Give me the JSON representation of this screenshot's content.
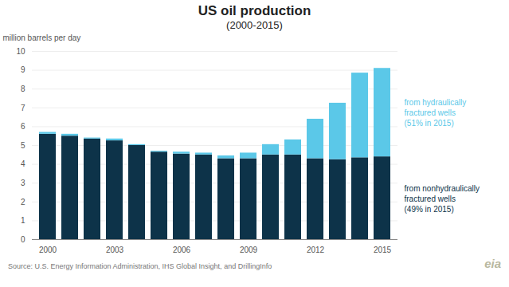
{
  "chart_data": {
    "type": "bar",
    "stacked": true,
    "title": "US oil production",
    "subtitle": "(2000-2015)",
    "ylabel": "million barrels per day",
    "annotations": [
      "Source: U.S. Energy Information Administration, IHS Global Insight, and DrillingInfo",
      "eia"
    ],
    "categories": [
      "2000",
      null,
      null,
      "2003",
      null,
      null,
      "2006",
      null,
      null,
      "2009",
      null,
      null,
      "2012",
      null,
      null,
      "2015"
    ],
    "series": [
      {
        "name": "from nonhydraulically\nfractured wells\n(49% in 2015)",
        "color": "#0d3349",
        "values": [
          5.6,
          5.5,
          5.35,
          5.25,
          5.0,
          4.65,
          4.55,
          4.5,
          4.3,
          4.3,
          4.5,
          4.5,
          4.3,
          4.25,
          4.35,
          4.4
        ]
      },
      {
        "name": "from hydraulically\nfractured wells\n(51% in 2015)",
        "color": "#5bc8e8",
        "values": [
          0.1,
          0.1,
          0.05,
          0.1,
          0.05,
          0.05,
          0.1,
          0.1,
          0.15,
          0.3,
          0.55,
          0.8,
          2.1,
          3.0,
          4.5,
          4.7
        ]
      }
    ],
    "ylim": [
      0,
      10
    ],
    "yticks": [
      0,
      1,
      2,
      3,
      4,
      5,
      6,
      7,
      8,
      9,
      10
    ],
    "grid": true
  }
}
